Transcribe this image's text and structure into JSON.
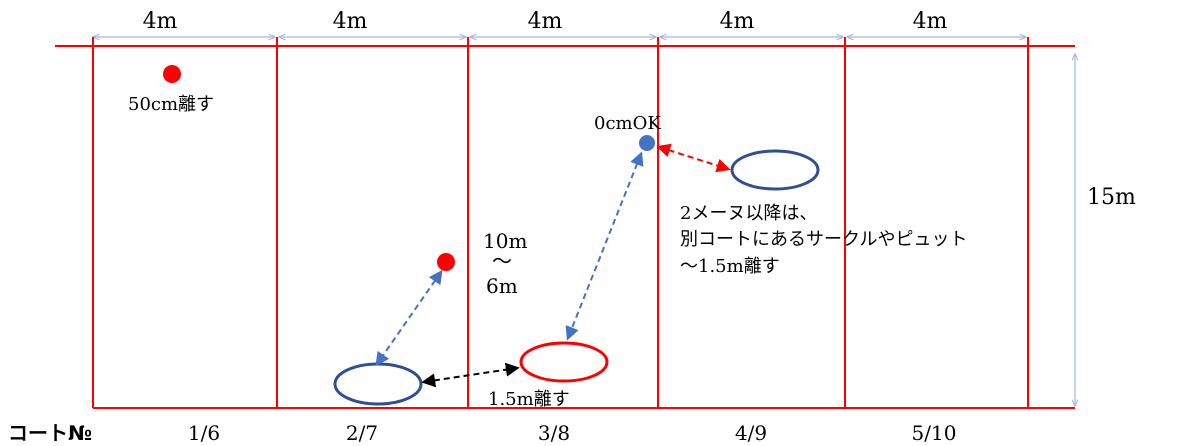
{
  "width_labels": [
    "4m",
    "4m",
    "4m",
    "4m",
    "4m"
  ],
  "height_label": "15m",
  "court_no_label": "コート№",
  "court_numbers": [
    "1/6",
    "2/7",
    "3/8",
    "4/9",
    "5/10"
  ],
  "annotations": {
    "fifty_cm": "50cm離す",
    "zero_cm_ok": "0cmOK",
    "range_top": "10m",
    "range_tilde": "～",
    "range_bottom": "6m",
    "one_five_m": "1.5m離す",
    "note_line1": "2メーヌ以降は、",
    "note_line2": "別コートにあるサークルやピュット",
    "note_line3": "～1.5m離す"
  },
  "colors": {
    "court_lines": "#ff0000",
    "dim_lines": "#aab4e0",
    "red_marker": "#ff0000",
    "blue_marker": "#4472c4",
    "blue_circle": "#2f4f95",
    "red_circle": "#ff0000",
    "blue_arrow": "#4472c4",
    "black_arrow": "#000000",
    "red_arrow": "#ff0000",
    "text": "#000000"
  }
}
